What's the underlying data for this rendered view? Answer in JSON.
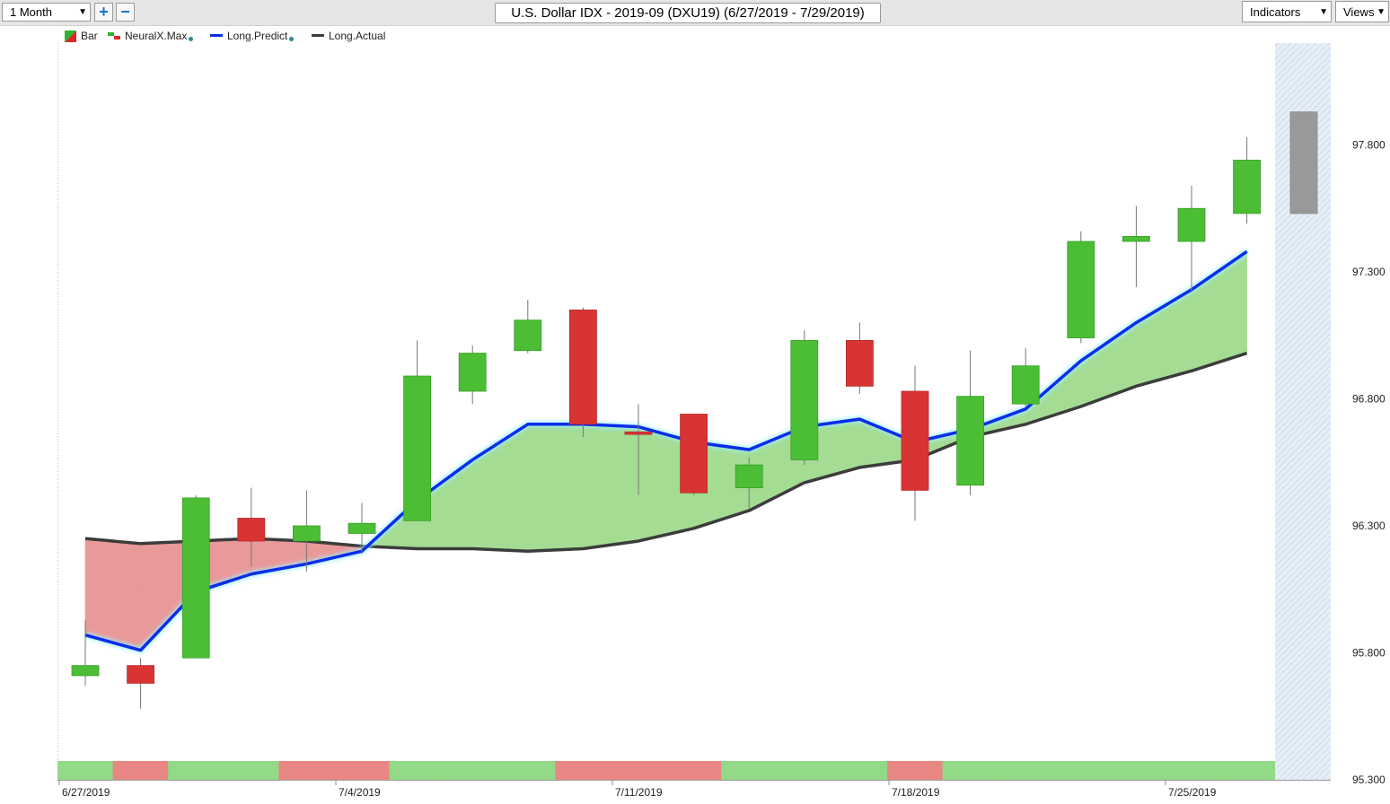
{
  "toolbar": {
    "period": "1 Month",
    "zoom_in": "+",
    "zoom_out": "−",
    "title": "U.S. Dollar IDX - 2019-09 (DXU19) (6/27/2019 - 7/29/2019)",
    "indicators": "Indicators",
    "views": "Views"
  },
  "legend": [
    {
      "label": "Bar",
      "icon": "bar-icon",
      "colors": [
        "#2bb52b",
        "#d62a2a"
      ]
    },
    {
      "label": "NeuralX.Max",
      "icon": "neuralx-icon",
      "colors": [
        "#2bb52b",
        "#d62a2a"
      ]
    },
    {
      "label": "Long.Predict",
      "icon": "line-icon",
      "color": "#0a2ee8"
    },
    {
      "label": "Long.Actual",
      "icon": "line-icon",
      "color": "#3c3c3c"
    }
  ],
  "chart_data": {
    "type": "candlestick",
    "title": "U.S. Dollar IDX - 2019-09 (DXU19) (6/27/2019 - 7/29/2019)",
    "ylim": [
      95.3,
      98.3
    ],
    "y_ticks": [
      "95.300",
      "95.800",
      "96.300",
      "96.800",
      "97.300",
      "97.800"
    ],
    "x_ticks": [
      {
        "label": "6/27/2019",
        "index": 0
      },
      {
        "label": "7/4/2019",
        "index": 5
      },
      {
        "label": "7/11/2019",
        "index": 10
      },
      {
        "label": "7/18/2019",
        "index": 15
      },
      {
        "label": "7/25/2019",
        "index": 20
      }
    ],
    "bars": [
      {
        "o": 95.71,
        "h": 95.93,
        "l": 95.67,
        "c": 95.75
      },
      {
        "o": 95.75,
        "h": 95.78,
        "l": 95.58,
        "c": 95.68
      },
      {
        "o": 95.78,
        "h": 96.42,
        "l": 95.78,
        "c": 96.41
      },
      {
        "o": 96.33,
        "h": 96.45,
        "l": 96.14,
        "c": 96.24
      },
      {
        "o": 96.24,
        "h": 96.44,
        "l": 96.12,
        "c": 96.3
      },
      {
        "o": 96.27,
        "h": 96.39,
        "l": 96.19,
        "c": 96.31
      },
      {
        "o": 96.32,
        "h": 97.03,
        "l": 96.32,
        "c": 96.89
      },
      {
        "o": 96.83,
        "h": 97.01,
        "l": 96.78,
        "c": 96.98
      },
      {
        "o": 96.99,
        "h": 97.19,
        "l": 96.98,
        "c": 97.11
      },
      {
        "o": 97.15,
        "h": 97.16,
        "l": 96.65,
        "c": 96.7
      },
      {
        "o": 96.67,
        "h": 96.78,
        "l": 96.42,
        "c": 96.66
      },
      {
        "o": 96.74,
        "h": 96.74,
        "l": 96.42,
        "c": 96.43
      },
      {
        "o": 96.45,
        "h": 96.57,
        "l": 96.37,
        "c": 96.54
      },
      {
        "o": 96.56,
        "h": 97.07,
        "l": 96.54,
        "c": 97.03
      },
      {
        "o": 97.03,
        "h": 97.1,
        "l": 96.82,
        "c": 96.85
      },
      {
        "o": 96.83,
        "h": 96.93,
        "l": 96.32,
        "c": 96.44
      },
      {
        "o": 96.46,
        "h": 96.99,
        "l": 96.42,
        "c": 96.81
      },
      {
        "o": 96.78,
        "h": 97.0,
        "l": 96.77,
        "c": 96.93
      },
      {
        "o": 97.04,
        "h": 97.46,
        "l": 97.02,
        "c": 97.42
      },
      {
        "o": 97.42,
        "h": 97.56,
        "l": 97.24,
        "c": 97.44
      },
      {
        "o": 97.42,
        "h": 97.64,
        "l": 97.22,
        "c": 97.55
      },
      {
        "o": 97.53,
        "h": 97.83,
        "l": 97.49,
        "c": 97.74
      }
    ],
    "forecast_bar": {
      "o": 97.53,
      "h": 97.93,
      "l": 97.53,
      "c": 97.93,
      "color": "#999999"
    },
    "series": [
      {
        "name": "Long.Predict",
        "color": "#0a2ee8",
        "values": [
          95.87,
          95.81,
          96.04,
          96.11,
          96.15,
          96.2,
          96.4,
          96.56,
          96.7,
          96.7,
          96.69,
          96.63,
          96.6,
          96.69,
          96.72,
          96.63,
          96.68,
          96.76,
          96.95,
          97.1,
          97.23,
          97.38
        ]
      },
      {
        "name": "Long.Actual",
        "color": "#3c3c3c",
        "values": [
          96.25,
          96.23,
          96.24,
          96.25,
          96.24,
          96.22,
          96.21,
          96.21,
          96.2,
          96.21,
          96.24,
          96.29,
          96.36,
          96.47,
          96.53,
          96.56,
          96.65,
          96.7,
          96.77,
          96.85,
          96.91,
          96.98
        ]
      }
    ],
    "neuralx_strip": [
      "green",
      "red",
      "green",
      "green",
      "red",
      "red",
      "green",
      "green",
      "green",
      "red",
      "red",
      "red",
      "green",
      "green",
      "green",
      "red",
      "green",
      "green",
      "green",
      "green",
      "green",
      "green"
    ],
    "colors": {
      "up": "#4cbe35",
      "down": "#d93434",
      "fill_above": "#a4dc94",
      "fill_below": "#e99999",
      "strip_up": "#92da87",
      "strip_down": "#e88784"
    },
    "grid": false
  }
}
